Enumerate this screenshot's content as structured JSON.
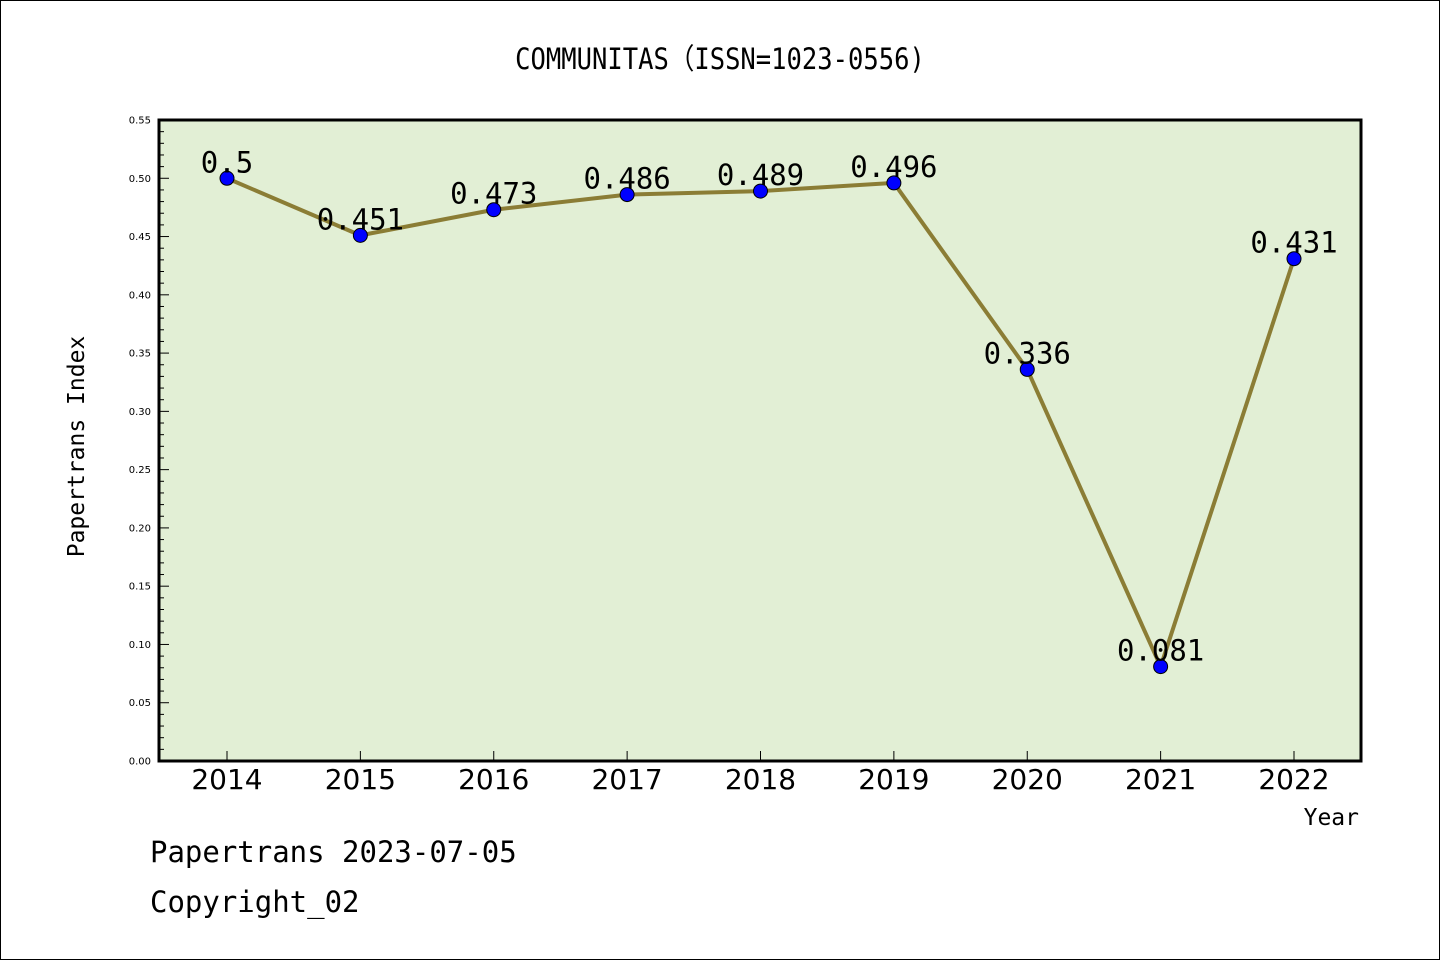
{
  "chart_data": {
    "type": "line",
    "title": "COMMUNITAS（ISSN=1023-0556)",
    "xlabel": "Year",
    "ylabel": "Papertrans Index",
    "categories": [
      "2014",
      "2015",
      "2016",
      "2017",
      "2018",
      "2019",
      "2020",
      "2021",
      "2022"
    ],
    "series": [
      {
        "values": [
          0.5,
          0.451,
          0.473,
          0.486,
          0.489,
          0.496,
          0.336,
          0.081,
          0.431
        ],
        "labels": [
          "0.5",
          "0.451",
          "0.473",
          "0.486",
          "0.489",
          "0.496",
          "0.336",
          "0.081",
          "0.431"
        ],
        "line_color": "#8b7d35",
        "marker_color": "#0000ff"
      }
    ],
    "ylim": [
      0,
      0.55
    ],
    "yticks": [
      "0.00",
      "0.05",
      "0.10",
      "0.15",
      "0.20",
      "0.25",
      "0.30",
      "0.35",
      "0.40",
      "0.45",
      "0.50",
      "0.55"
    ],
    "plot_background": "#e2efd5",
    "grid": false
  },
  "footer": {
    "line1": "Papertrans 2023-07-05",
    "line2": "Copyright_02"
  }
}
